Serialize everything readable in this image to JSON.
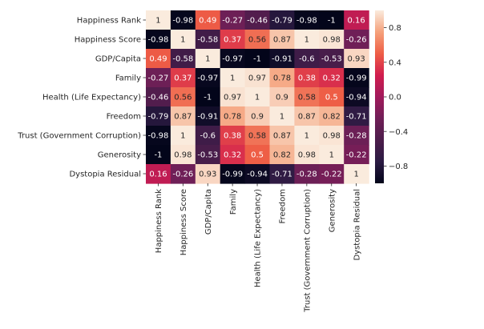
{
  "chart_data": {
    "type": "heatmap",
    "title": "",
    "xlabel": "",
    "ylabel": "",
    "rows": [
      "Happiness Rank",
      "Happiness Score",
      "GDP/Capita",
      "Family",
      "Health (Life Expectancy)",
      "Freedom",
      "Trust (Government Corruption)",
      "Generosity",
      "Dystopia Residual"
    ],
    "columns": [
      "Happiness Rank",
      "Happiness Score",
      "GDP/Capita",
      "Family",
      "Health (Life Expectancy)",
      "Freedom",
      "Trust (Government Corruption)",
      "Generosity",
      "Dystopia Residual"
    ],
    "values": [
      [
        1,
        -0.98,
        0.49,
        -0.27,
        -0.46,
        -0.79,
        -0.98,
        -1,
        0.16
      ],
      [
        -0.98,
        1,
        -0.58,
        0.37,
        0.56,
        0.87,
        1,
        0.98,
        -0.26
      ],
      [
        0.49,
        -0.58,
        1,
        -0.97,
        -1,
        -0.91,
        -0.6,
        -0.53,
        0.93
      ],
      [
        -0.27,
        0.37,
        -0.97,
        1,
        0.97,
        0.78,
        0.38,
        0.32,
        -0.99
      ],
      [
        -0.46,
        0.56,
        -1,
        0.97,
        1,
        0.9,
        0.58,
        0.5,
        -0.94
      ],
      [
        -0.79,
        0.87,
        -0.91,
        0.78,
        0.9,
        1,
        0.87,
        0.82,
        -0.71
      ],
      [
        -0.98,
        1,
        -0.6,
        0.38,
        0.58,
        0.87,
        1,
        0.98,
        -0.28
      ],
      [
        -1,
        0.98,
        -0.53,
        0.32,
        0.5,
        0.82,
        0.98,
        1,
        -0.22
      ],
      [
        0.16,
        -0.26,
        0.93,
        -0.99,
        -0.94,
        -0.71,
        -0.28,
        -0.22,
        1
      ]
    ],
    "value_labels": [
      [
        "1",
        "-0.98",
        "0.49",
        "-0.27",
        "-0.46",
        "-0.79",
        "-0.98",
        "-1",
        "0.16"
      ],
      [
        "-0.98",
        "1",
        "-0.58",
        "0.37",
        "0.56",
        "0.87",
        "1",
        "0.98",
        "-0.26"
      ],
      [
        "0.49",
        "-0.58",
        "1",
        "-0.97",
        "-1",
        "-0.91",
        "-0.6",
        "-0.53",
        "0.93"
      ],
      [
        "-0.27",
        "0.37",
        "-0.97",
        "1",
        "0.97",
        "0.78",
        "0.38",
        "0.32",
        "-0.99"
      ],
      [
        "-0.46",
        "0.56",
        "-1",
        "0.97",
        "1",
        "0.9",
        "0.58",
        "0.5",
        "-0.94"
      ],
      [
        "-0.79",
        "0.87",
        "-0.91",
        "0.78",
        "0.9",
        "1",
        "0.87",
        "0.82",
        "-0.71"
      ],
      [
        "-0.98",
        "1",
        "-0.6",
        "0.38",
        "0.58",
        "0.87",
        "1",
        "0.98",
        "-0.28"
      ],
      [
        "-1",
        "0.98",
        "-0.53",
        "0.32",
        "0.5",
        "0.82",
        "0.98",
        "1",
        "-0.22"
      ],
      [
        "0.16",
        "-0.26",
        "0.93",
        "-0.99",
        "-0.94",
        "-0.71",
        "-0.28",
        "-0.22",
        "1"
      ]
    ],
    "colorbar": {
      "range": [
        -1,
        1
      ],
      "ticks": [
        0.8,
        0.4,
        0.0,
        -0.4,
        -0.8
      ],
      "tick_labels": [
        "0.8",
        "0.4",
        "0.0",
        "−0.4",
        "−0.8"
      ]
    },
    "colormap": {
      "name": "rocket",
      "stops": [
        [
          0.0,
          "#03051a"
        ],
        [
          0.125,
          "#2b1b43"
        ],
        [
          0.25,
          "#4c1d4b"
        ],
        [
          0.375,
          "#701f57"
        ],
        [
          0.5,
          "#a11a5b"
        ],
        [
          0.625,
          "#d11d4e"
        ],
        [
          0.75,
          "#ee5e46"
        ],
        [
          0.875,
          "#f5a17b"
        ],
        [
          1.0,
          "#faebdd"
        ]
      ]
    }
  }
}
